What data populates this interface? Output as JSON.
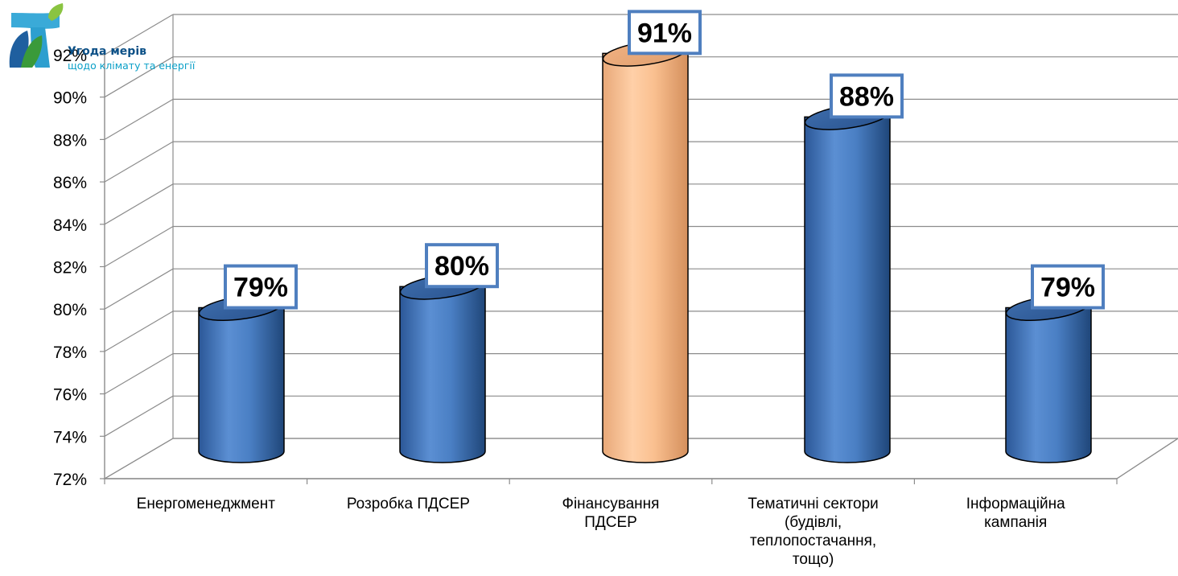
{
  "logo": {
    "title": "Угода мерів",
    "subtitle": "щодо клімату та енергії",
    "icon": "covenant-of-mayors-leaf-icon"
  },
  "chart_data": {
    "type": "bar",
    "style": "3d-cylinder",
    "categories": [
      [
        "Енергоменеджмент"
      ],
      [
        "Розробка ПДСЕР"
      ],
      [
        "Фінансування",
        "ПДСЕР"
      ],
      [
        "Тематичні сектори",
        "(будівлі,",
        "теплопостачання,",
        "тощо)"
      ],
      [
        "Інформаційна",
        "кампанія"
      ]
    ],
    "values": [
      79,
      80,
      91,
      88,
      79
    ],
    "value_labels": [
      "79%",
      "80%",
      "91%",
      "88%",
      "79%"
    ],
    "bar_colors": [
      "#4f81bd",
      "#4f81bd",
      "#fac090",
      "#4f81bd",
      "#4f81bd"
    ],
    "label_border_color": "#4f7fbf",
    "ylim": [
      72,
      92
    ],
    "y_ticks": [
      "72%",
      "74%",
      "76%",
      "78%",
      "80%",
      "82%",
      "84%",
      "86%",
      "88%",
      "90%",
      "92%"
    ],
    "grid": true,
    "legend": "none",
    "title": "",
    "xlabel": "",
    "ylabel": ""
  }
}
